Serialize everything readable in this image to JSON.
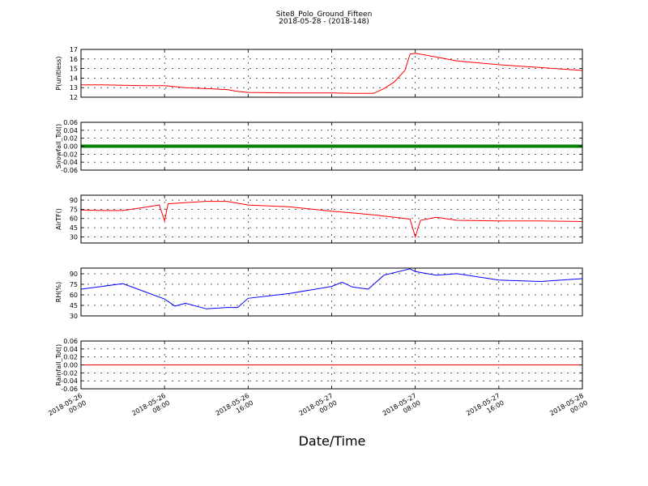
{
  "figure": {
    "title": "Site8_Polo_Ground_Fifteen",
    "subtitle": "2018-05-28 - (2018-148)",
    "xlabel": "Date/Time"
  },
  "x_ticks": [
    [
      "2018-05-26",
      "00:00"
    ],
    [
      "2018-05-26",
      "08:00"
    ],
    [
      "2018-05-26",
      "16:00"
    ],
    [
      "2018-05-27",
      "00:00"
    ],
    [
      "2018-05-27",
      "08:00"
    ],
    [
      "2018-05-27",
      "16:00"
    ],
    [
      "2018-05-28",
      "00:00"
    ]
  ],
  "chart_data": [
    {
      "type": "line",
      "ylabel": "P(unitless)",
      "ylim": [
        12,
        17
      ],
      "yticks": [
        12,
        13,
        14,
        15,
        16,
        17
      ],
      "xlim": [
        "2018-05-26 00:00",
        "2018-05-28 00:00"
      ],
      "grid": true,
      "series": [
        {
          "color": "#ff0000",
          "marker": "none",
          "x": [
            "2018-05-26 00:00",
            "2018-05-26 02:00",
            "2018-05-26 04:00",
            "2018-05-26 06:00",
            "2018-05-26 08:00",
            "2018-05-26 10:00",
            "2018-05-26 12:00",
            "2018-05-26 14:00",
            "2018-05-26 15:00",
            "2018-05-26 16:00",
            "2018-05-26 20:00",
            "2018-05-27 00:00",
            "2018-05-27 02:00",
            "2018-05-27 04:00",
            "2018-05-27 05:00",
            "2018-05-27 06:00",
            "2018-05-27 07:00",
            "2018-05-27 07:30",
            "2018-05-27 08:00",
            "2018-05-27 10:00",
            "2018-05-27 12:00",
            "2018-05-27 16:00",
            "2018-05-27 20:00",
            "2018-05-28 00:00"
          ],
          "y": [
            13.3,
            13.3,
            13.25,
            13.2,
            13.2,
            13.0,
            12.9,
            12.8,
            12.6,
            12.5,
            12.45,
            12.45,
            12.4,
            12.4,
            12.9,
            13.6,
            14.8,
            16.5,
            16.6,
            16.2,
            15.8,
            15.4,
            15.1,
            14.8
          ]
        }
      ]
    },
    {
      "type": "line",
      "ylabel": "Snowfall_Tot()",
      "ylim": [
        -0.06,
        0.06
      ],
      "yticks": [
        -0.06,
        -0.04,
        -0.02,
        0.0,
        0.02,
        0.04,
        0.06
      ],
      "grid": true,
      "series": [
        {
          "color": "#008000",
          "marker": "dot",
          "x": [
            "2018-05-26 00:00",
            "2018-05-28 00:00"
          ],
          "y": [
            0.0,
            0.0
          ]
        }
      ]
    },
    {
      "type": "line",
      "ylabel": "AirTF()",
      "ylim": [
        20,
        98
      ],
      "yticks": [
        30,
        45,
        60,
        75,
        90
      ],
      "grid": true,
      "series": [
        {
          "color": "#ff0000",
          "marker": "none",
          "x": [
            "2018-05-26 00:00",
            "2018-05-26 02:00",
            "2018-05-26 04:00",
            "2018-05-26 06:00",
            "2018-05-26 07:30",
            "2018-05-26 08:00",
            "2018-05-26 08:20",
            "2018-05-26 10:00",
            "2018-05-26 12:00",
            "2018-05-26 14:00",
            "2018-05-26 16:00",
            "2018-05-26 20:00",
            "2018-05-27 00:00",
            "2018-05-27 02:00",
            "2018-05-27 04:00",
            "2018-05-27 07:30",
            "2018-05-27 08:00",
            "2018-05-27 08:30",
            "2018-05-27 10:00",
            "2018-05-27 12:00",
            "2018-05-27 16:00",
            "2018-05-27 20:00",
            "2018-05-28 00:00"
          ],
          "y": [
            74,
            73,
            73,
            78,
            82,
            56,
            84,
            86,
            88,
            88,
            82,
            79,
            72,
            69,
            66,
            59,
            30,
            57,
            62,
            57,
            56,
            56,
            55
          ]
        }
      ]
    },
    {
      "type": "line",
      "ylabel": "RH(%)",
      "ylim": [
        30,
        98
      ],
      "yticks": [
        30,
        45,
        60,
        75,
        90
      ],
      "grid": true,
      "series": [
        {
          "color": "#0000ff",
          "marker": "none",
          "x": [
            "2018-05-26 00:00",
            "2018-05-26 02:00",
            "2018-05-26 04:00",
            "2018-05-26 06:00",
            "2018-05-26 08:00",
            "2018-05-26 09:00",
            "2018-05-26 10:00",
            "2018-05-26 12:00",
            "2018-05-26 14:00",
            "2018-05-26 15:00",
            "2018-05-26 16:00",
            "2018-05-26 20:00",
            "2018-05-27 00:00",
            "2018-05-27 01:00",
            "2018-05-27 02:00",
            "2018-05-27 03:30",
            "2018-05-27 05:00",
            "2018-05-27 07:30",
            "2018-05-27 08:00",
            "2018-05-27 10:00",
            "2018-05-27 12:00",
            "2018-05-27 16:00",
            "2018-05-27 20:00",
            "2018-05-28 00:00"
          ],
          "y": [
            68,
            72,
            76,
            65,
            54,
            44,
            48,
            40,
            42,
            42,
            55,
            62,
            72,
            78,
            71,
            68,
            88,
            97,
            93,
            88,
            90,
            81,
            79,
            83
          ]
        }
      ]
    },
    {
      "type": "line",
      "ylabel": "Rainfall_Tot()",
      "ylim": [
        -0.06,
        0.06
      ],
      "yticks": [
        -0.06,
        -0.04,
        -0.02,
        0.0,
        0.02,
        0.04,
        0.06
      ],
      "grid": true,
      "series": [
        {
          "color": "#ff0000",
          "marker": "none",
          "x": [
            "2018-05-26 00:00",
            "2018-05-28 00:00"
          ],
          "y": [
            0.0,
            0.0
          ]
        }
      ]
    }
  ]
}
